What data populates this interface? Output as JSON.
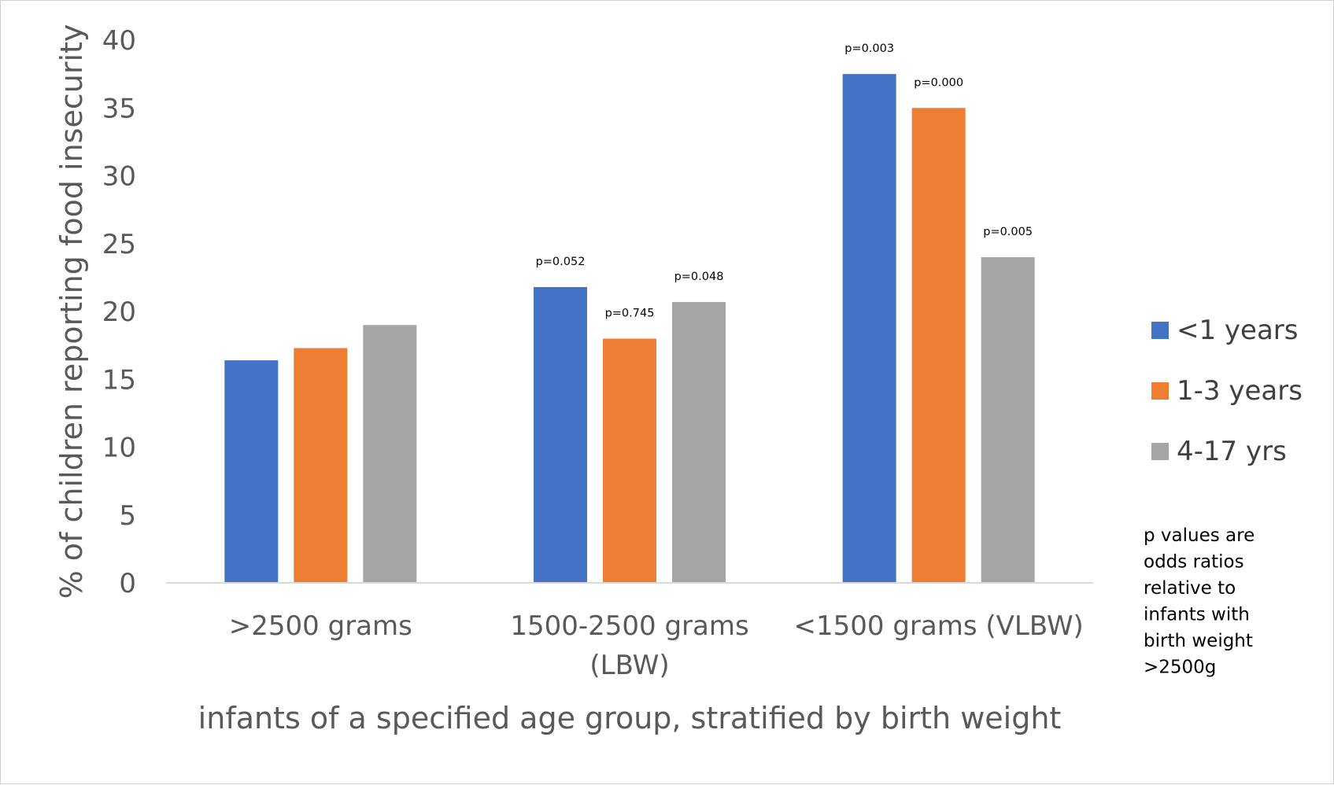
{
  "chart_data": {
    "type": "bar",
    "title": "",
    "xlabel": "infants of a specified age group, stratified by birth weight",
    "ylabel": "% of children reporting food insecurity",
    "ylim": [
      0,
      40
    ],
    "yticks": [
      0,
      5,
      10,
      15,
      20,
      25,
      30,
      35,
      40
    ],
    "grid": false,
    "legend_position": "right",
    "categories": [
      [
        ">2500 grams"
      ],
      [
        "1500-2500 grams",
        "(LBW)"
      ],
      [
        "<1500 grams (VLBW)"
      ]
    ],
    "series": [
      {
        "name": "<1 years",
        "color": "#4472C4",
        "values": [
          16.4,
          21.8,
          37.5
        ],
        "labels": [
          "",
          "p=0.052",
          "p=0.003"
        ]
      },
      {
        "name": "1-3 years",
        "color": "#ED7D31",
        "values": [
          17.3,
          18.0,
          35.0
        ],
        "labels": [
          "",
          "p=0.745",
          "p=0.000"
        ]
      },
      {
        "name": "4-17 yrs",
        "color": "#A5A5A5",
        "values": [
          19.0,
          20.7,
          24.0
        ],
        "labels": [
          "",
          "p=0.048",
          "p=0.005"
        ]
      }
    ],
    "annotation": [
      "p values are",
      "odds ratios",
      "relative to",
      "infants with",
      "birth weight",
      ">2500g"
    ]
  }
}
